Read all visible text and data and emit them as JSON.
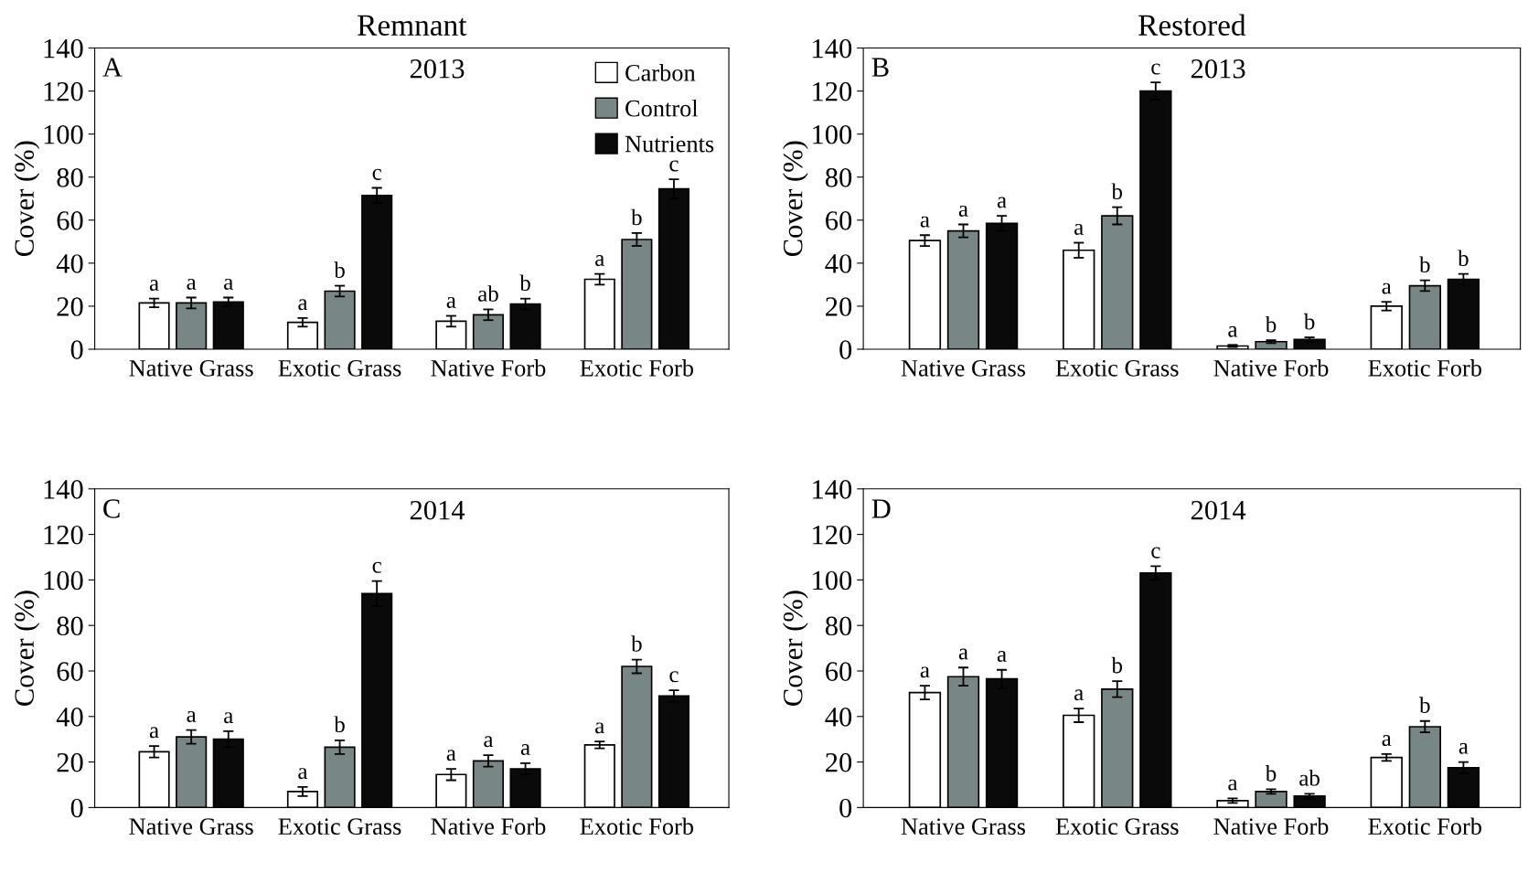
{
  "chart_data": [
    {
      "type": "bar",
      "title": "Remnant",
      "ylabel": "Cover (%)",
      "annotations": [
        "A",
        "2013"
      ],
      "categories": [
        "Native Grass",
        "Exotic Grass",
        "Native Forb",
        "Exotic Forb"
      ],
      "ylim": [
        0,
        140
      ],
      "yticks": [
        0,
        20,
        40,
        60,
        80,
        100,
        120,
        140
      ],
      "legend": "top right",
      "grid": false,
      "series": [
        {
          "name": "Carbon",
          "color": "#ffffff",
          "values": [
            21.5,
            12.5,
            13,
            32.5
          ],
          "errors": [
            2,
            2,
            2.5,
            2.5
          ],
          "value_labels": [
            "a",
            "a",
            "a",
            "a"
          ]
        },
        {
          "name": "Control",
          "color": "#788785",
          "values": [
            21.5,
            27,
            16,
            51
          ],
          "errors": [
            2.5,
            2.5,
            2.5,
            3
          ],
          "value_labels": [
            "a",
            "b",
            "ab",
            "b"
          ]
        },
        {
          "name": "Nutrients",
          "color": "#0a0a0a",
          "values": [
            22,
            71.5,
            21,
            74.5
          ],
          "errors": [
            2,
            3.5,
            2.5,
            4.5
          ],
          "value_labels": [
            "a",
            "c",
            "b",
            "c"
          ]
        }
      ]
    },
    {
      "type": "bar",
      "title": "Restored",
      "ylabel": "Cover (%)",
      "annotations": [
        "B",
        "2013"
      ],
      "categories": [
        "Native Grass",
        "Exotic Grass",
        "Native Forb",
        "Exotic Forb"
      ],
      "ylim": [
        0,
        140
      ],
      "yticks": [
        0,
        20,
        40,
        60,
        80,
        100,
        120,
        140
      ],
      "grid": false,
      "series": [
        {
          "color": "#ffffff",
          "values": [
            50.5,
            46,
            1.5,
            20
          ],
          "errors": [
            2.5,
            3.5,
            0.5,
            2
          ],
          "value_labels": [
            "a",
            "a",
            "a",
            "a"
          ]
        },
        {
          "color": "#788785",
          "values": [
            55,
            62,
            3.5,
            29.5
          ],
          "errors": [
            3,
            4,
            0.7,
            2.5
          ],
          "value_labels": [
            "a",
            "b",
            "b",
            "b"
          ]
        },
        {
          "color": "#0a0a0a",
          "values": [
            58.5,
            120,
            4.5,
            32.5
          ],
          "errors": [
            3.5,
            4,
            1,
            2.5
          ],
          "value_labels": [
            "a",
            "c",
            "b",
            "b"
          ]
        }
      ]
    },
    {
      "type": "bar",
      "ylabel": "Cover (%)",
      "annotations": [
        "C",
        "2014"
      ],
      "categories": [
        "Native Grass",
        "Exotic Grass",
        "Native Forb",
        "Exotic Forb"
      ],
      "ylim": [
        0,
        140
      ],
      "yticks": [
        0,
        20,
        40,
        60,
        80,
        100,
        120,
        140
      ],
      "grid": false,
      "series": [
        {
          "color": "#ffffff",
          "values": [
            24.5,
            7,
            14.5,
            27.5
          ],
          "errors": [
            2.5,
            2,
            2.5,
            1.5
          ],
          "value_labels": [
            "a",
            "a",
            "a",
            "a"
          ]
        },
        {
          "color": "#788785",
          "values": [
            31,
            26.5,
            20.5,
            62
          ],
          "errors": [
            3,
            3,
            2.5,
            3
          ],
          "value_labels": [
            "a",
            "b",
            "a",
            "b"
          ]
        },
        {
          "color": "#0a0a0a",
          "values": [
            30,
            94,
            17,
            49
          ],
          "errors": [
            3.5,
            5.5,
            2.5,
            2.5
          ],
          "value_labels": [
            "a",
            "c",
            "a",
            "c"
          ]
        }
      ]
    },
    {
      "type": "bar",
      "ylabel": "Cover (%)",
      "annotations": [
        "D",
        "2014"
      ],
      "categories": [
        "Native Grass",
        "Exotic Grass",
        "Native Forb",
        "Exotic Forb"
      ],
      "ylim": [
        0,
        140
      ],
      "yticks": [
        0,
        20,
        40,
        60,
        80,
        100,
        120,
        140
      ],
      "grid": false,
      "series": [
        {
          "color": "#ffffff",
          "values": [
            50.5,
            40.5,
            3,
            22
          ],
          "errors": [
            3,
            3,
            1,
            1.5
          ],
          "value_labels": [
            "a",
            "a",
            "a",
            "a"
          ]
        },
        {
          "color": "#788785",
          "values": [
            57.5,
            52,
            7,
            35.5
          ],
          "errors": [
            4,
            3.5,
            1,
            2.5
          ],
          "value_labels": [
            "a",
            "b",
            "b",
            "b"
          ]
        },
        {
          "color": "#0a0a0a",
          "values": [
            56.5,
            103,
            5,
            17.5
          ],
          "errors": [
            4,
            3,
            1,
            2.5
          ],
          "value_labels": [
            "a",
            "c",
            "ab",
            "a"
          ]
        }
      ]
    }
  ]
}
